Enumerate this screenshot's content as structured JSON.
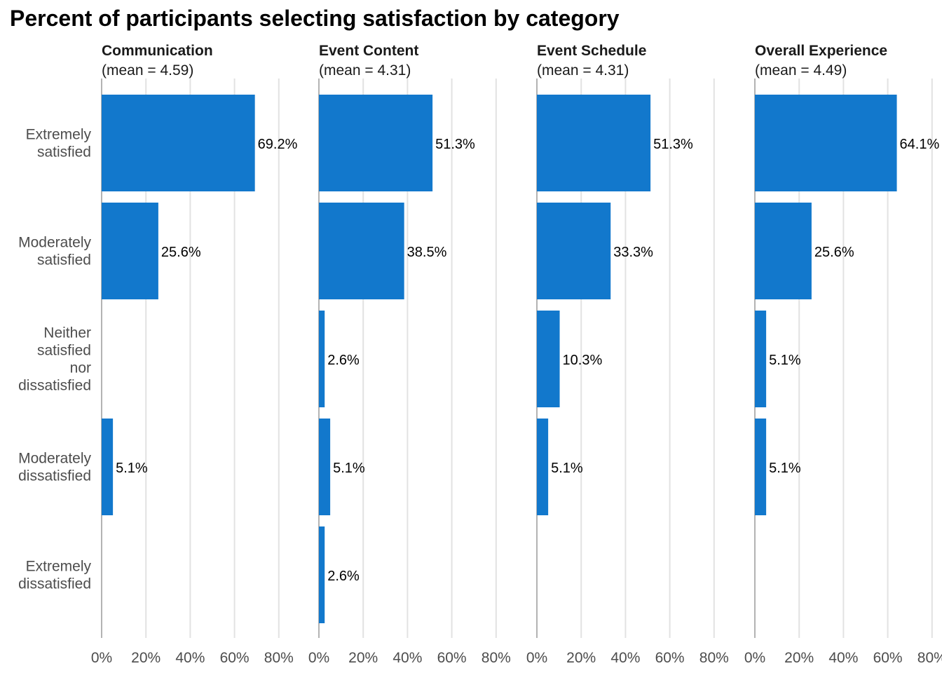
{
  "chart_data": {
    "type": "bar",
    "orientation": "horizontal",
    "title": "Percent of participants selecting satisfaction by category",
    "categories": [
      [
        "Extremely",
        "satisfied"
      ],
      [
        "Moderately",
        "satisfied"
      ],
      [
        "Neither",
        "satisfied",
        "nor",
        "dissatisfied"
      ],
      [
        "Moderately",
        "dissatisfied"
      ],
      [
        "Extremely",
        "dissatisfied"
      ]
    ],
    "x_ticks": [
      "0%",
      "20%",
      "40%",
      "60%",
      "80%"
    ],
    "x_tick_values": [
      0,
      20,
      40,
      60,
      80
    ],
    "xlim": [
      0,
      100
    ],
    "grid": true,
    "bar_color": "#1278cc",
    "facets": [
      {
        "name": "Communication",
        "subtitle": "(mean = 4.59)",
        "values": [
          69.2,
          25.6,
          null,
          5.1,
          null
        ],
        "labels": [
          "69.2%",
          "25.6%",
          null,
          "5.1%",
          null
        ]
      },
      {
        "name": "Event Content",
        "subtitle": "(mean = 4.31)",
        "values": [
          51.3,
          38.5,
          2.6,
          5.1,
          2.6
        ],
        "labels": [
          "51.3%",
          "38.5%",
          "2.6%",
          "5.1%",
          "2.6%"
        ]
      },
      {
        "name": "Event Schedule",
        "subtitle": "(mean = 4.31)",
        "values": [
          51.3,
          33.3,
          10.3,
          5.1,
          null
        ],
        "labels": [
          "51.3%",
          "33.3%",
          "10.3%",
          "5.1%",
          null
        ]
      },
      {
        "name": "Overall Experience",
        "subtitle": "(mean = 4.49)",
        "values": [
          64.1,
          25.6,
          5.1,
          5.1,
          null
        ],
        "labels": [
          "64.1%",
          "25.6%",
          "5.1%",
          "5.1%",
          null
        ]
      }
    ]
  }
}
